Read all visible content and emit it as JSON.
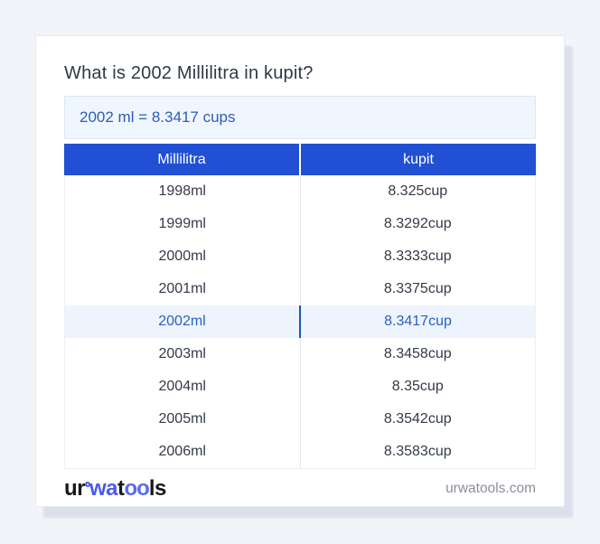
{
  "header": {
    "question": "What is 2002 Millilitra in kupit?"
  },
  "answer": {
    "text": "2002 ml = 8.3417 cups"
  },
  "table": {
    "headers": [
      "Millilitra",
      "kupit"
    ],
    "rows": [
      {
        "ml": "1998ml",
        "cup": "8.325cup"
      },
      {
        "ml": "1999ml",
        "cup": "8.3292cup"
      },
      {
        "ml": "2000ml",
        "cup": "8.3333cup"
      },
      {
        "ml": "2001ml",
        "cup": "8.3375cup"
      },
      {
        "ml": "2002ml",
        "cup": "8.3417cup"
      },
      {
        "ml": "2003ml",
        "cup": "8.3458cup"
      },
      {
        "ml": "2004ml",
        "cup": "8.35cup"
      },
      {
        "ml": "2005ml",
        "cup": "8.3542cup"
      },
      {
        "ml": "2006ml",
        "cup": "8.3583cup"
      }
    ],
    "highlighted_row_value": "2002ml"
  },
  "footer": {
    "logo": {
      "ur": "ur",
      "wa": "wa",
      "t": "t",
      "oo": "oo",
      "ls": "ls"
    },
    "domain": "urwatools.com"
  },
  "colors": {
    "accent_blue": "#2150d4",
    "answer_text_blue": "#2d5cb8",
    "answer_box_bg": "#eff6fd",
    "highlight_row_bg": "#edf4fd",
    "highlight_divider_blue": "#1d5ab2",
    "logo_blue": "#4a5af0",
    "page_bg": "#f3f4f9"
  }
}
